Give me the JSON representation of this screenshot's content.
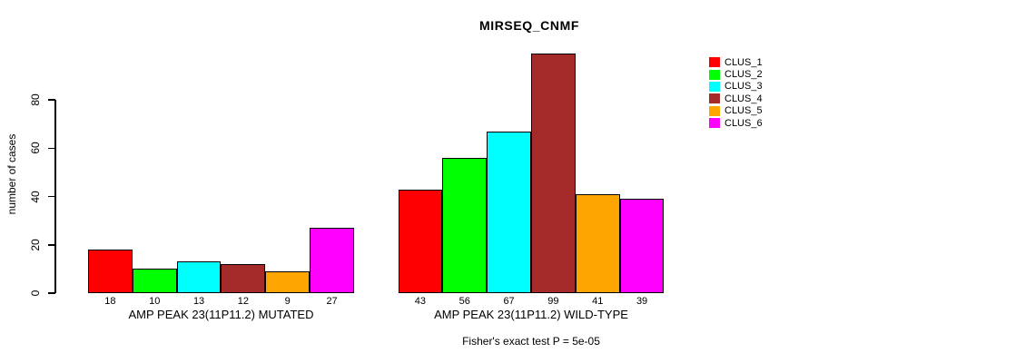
{
  "chart_data": {
    "type": "bar",
    "title": "MIRSEQ_CNMF",
    "ylabel": "number of cases",
    "xlabel": "",
    "annotation": "Fisher's exact test P = 5e-05",
    "yticks": [
      0,
      20,
      40,
      60,
      80
    ],
    "ylim": [
      0,
      99
    ],
    "grid": false,
    "legend_position": "right",
    "legend": [
      {
        "label": "CLUS_1",
        "color": "#FF0000"
      },
      {
        "label": "CLUS_2",
        "color": "#00FF00"
      },
      {
        "label": "CLUS_3",
        "color": "#00FFFF"
      },
      {
        "label": "CLUS_4",
        "color": "#A52A2A"
      },
      {
        "label": "CLUS_5",
        "color": "#FFA500"
      },
      {
        "label": "CLUS_6",
        "color": "#FF00FF"
      }
    ],
    "groups": [
      {
        "label": "AMP PEAK 23(11P11.2) MUTATED",
        "values": [
          18,
          10,
          13,
          12,
          9,
          27
        ]
      },
      {
        "label": "AMP PEAK 23(11P11.2) WILD-TYPE",
        "values": [
          43,
          56,
          67,
          99,
          41,
          39
        ]
      }
    ],
    "axis_color": "#000000",
    "bar_border_color": "#000000"
  }
}
